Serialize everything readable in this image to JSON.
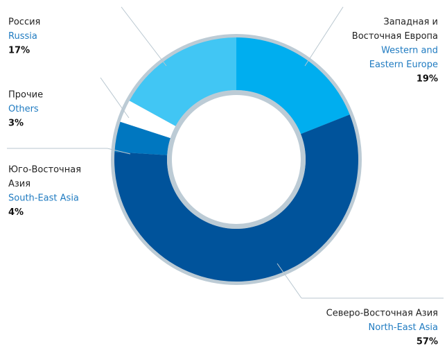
{
  "chart_data": {
    "type": "donut",
    "categories_ru": [
      [
        "Западная и",
        "Восточная Европа"
      ],
      [
        "Северо-Восточная Азия"
      ],
      [
        "Юго-Восточная",
        "Азия"
      ],
      [
        "Прочие"
      ],
      [
        "Россия"
      ]
    ],
    "categories": [
      [
        "Western and",
        "Eastern Europe"
      ],
      [
        "North-East Asia"
      ],
      [
        "South-East Asia"
      ],
      [
        "Others"
      ],
      [
        "Russia"
      ]
    ],
    "values": [
      19,
      57,
      4,
      3,
      17
    ],
    "value_labels": [
      "19%",
      "57%",
      "4%",
      "3%",
      "17%"
    ],
    "colors": [
      "#00aeef",
      "#00539b",
      "#0077c0",
      "#ffffff",
      "#41c6f4"
    ]
  }
}
